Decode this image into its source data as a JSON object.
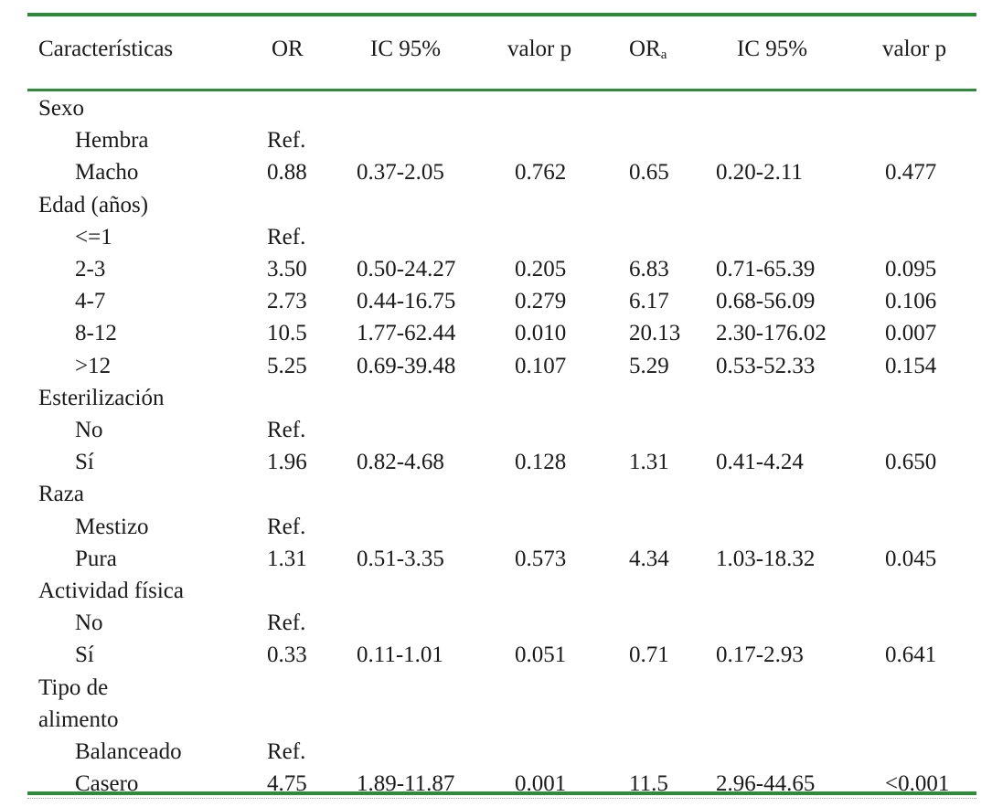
{
  "table": {
    "headers": {
      "characteristic": "Características",
      "or": "OR",
      "ci1": "IC 95%",
      "p1": "valor p",
      "ora_base": "OR",
      "ora_sub": "a",
      "ci2": "IC 95%",
      "p2": "valor p"
    },
    "rows": [
      {
        "label": "Sexo",
        "indent": false,
        "or": "",
        "ci1": "",
        "p1": "",
        "ora": "",
        "ci2": "",
        "p2": ""
      },
      {
        "label": "Hembra",
        "indent": true,
        "or": "Ref.",
        "ci1": "",
        "p1": "",
        "ora": "",
        "ci2": "",
        "p2": ""
      },
      {
        "label": "Macho",
        "indent": true,
        "or": "0.88",
        "ci1": "0.37-2.05",
        "p1": "0.762",
        "ora": "0.65",
        "ci2": "0.20-2.11",
        "p2": "0.477"
      },
      {
        "label": "Edad (años)",
        "indent": false,
        "or": "",
        "ci1": "",
        "p1": "",
        "ora": "",
        "ci2": "",
        "p2": ""
      },
      {
        "label": "<=1",
        "indent": true,
        "or": "Ref.",
        "ci1": "",
        "p1": "",
        "ora": "",
        "ci2": "",
        "p2": ""
      },
      {
        "label": "2-3",
        "indent": true,
        "or": "3.50",
        "ci1": "0.50-24.27",
        "p1": "0.205",
        "ora": "6.83",
        "ci2": "0.71-65.39",
        "p2": "0.095"
      },
      {
        "label": "4-7",
        "indent": true,
        "or": "2.73",
        "ci1": "0.44-16.75",
        "p1": "0.279",
        "ora": "6.17",
        "ci2": "0.68-56.09",
        "p2": "0.106"
      },
      {
        "label": "8-12",
        "indent": true,
        "or": "10.5",
        "ci1": "1.77-62.44",
        "p1": "0.010",
        "ora": "20.13",
        "ci2": "2.30-176.02",
        "p2": "0.007"
      },
      {
        "label": ">12",
        "indent": true,
        "or": "5.25",
        "ci1": "0.69-39.48",
        "p1": "0.107",
        "ora": "5.29",
        "ci2": "0.53-52.33",
        "p2": "0.154"
      },
      {
        "label": "Esterilización",
        "indent": false,
        "or": "",
        "ci1": "",
        "p1": "",
        "ora": "",
        "ci2": "",
        "p2": ""
      },
      {
        "label": "No",
        "indent": true,
        "or": "Ref.",
        "ci1": "",
        "p1": "",
        "ora": "",
        "ci2": "",
        "p2": ""
      },
      {
        "label": "Sí",
        "indent": true,
        "or": "1.96",
        "ci1": "0.82-4.68",
        "p1": "0.128",
        "ora": "1.31",
        "ci2": "0.41-4.24",
        "p2": "0.650"
      },
      {
        "label": "Raza",
        "indent": false,
        "or": "",
        "ci1": "",
        "p1": "",
        "ora": "",
        "ci2": "",
        "p2": ""
      },
      {
        "label": "Mestizo",
        "indent": true,
        "or": "Ref.",
        "ci1": "",
        "p1": "",
        "ora": "",
        "ci2": "",
        "p2": ""
      },
      {
        "label": "Pura",
        "indent": true,
        "or": "1.31",
        "ci1": "0.51-3.35",
        "p1": "0.573",
        "ora": "4.34",
        "ci2": "1.03-18.32",
        "p2": "0.045"
      },
      {
        "label": "Actividad física",
        "indent": false,
        "or": "",
        "ci1": "",
        "p1": "",
        "ora": "",
        "ci2": "",
        "p2": ""
      },
      {
        "label": "No",
        "indent": true,
        "or": "Ref.",
        "ci1": "",
        "p1": "",
        "ora": "",
        "ci2": "",
        "p2": ""
      },
      {
        "label": "Sí",
        "indent": true,
        "or": "0.33",
        "ci1": "0.11-1.01",
        "p1": "0.051",
        "ora": "0.71",
        "ci2": "0.17-2.93",
        "p2": "0.641"
      },
      {
        "label": "Tipo de",
        "indent": false,
        "or": "",
        "ci1": "",
        "p1": "",
        "ora": "",
        "ci2": "",
        "p2": ""
      },
      {
        "label": "alimento",
        "indent": false,
        "or": "",
        "ci1": "",
        "p1": "",
        "ora": "",
        "ci2": "",
        "p2": ""
      },
      {
        "label": "Balanceado",
        "indent": true,
        "or": "Ref.",
        "ci1": "",
        "p1": "",
        "ora": "",
        "ci2": "",
        "p2": ""
      },
      {
        "label": "Casero",
        "indent": true,
        "or": "4.75",
        "ci1": "1.89-11.87",
        "p1": "0.001",
        "ora": "11.5",
        "ci2": "2.96-44.65",
        "p2": "<0.001"
      }
    ]
  },
  "colors": {
    "rule": "#2e8b3a",
    "text": "#1a1a1a"
  }
}
